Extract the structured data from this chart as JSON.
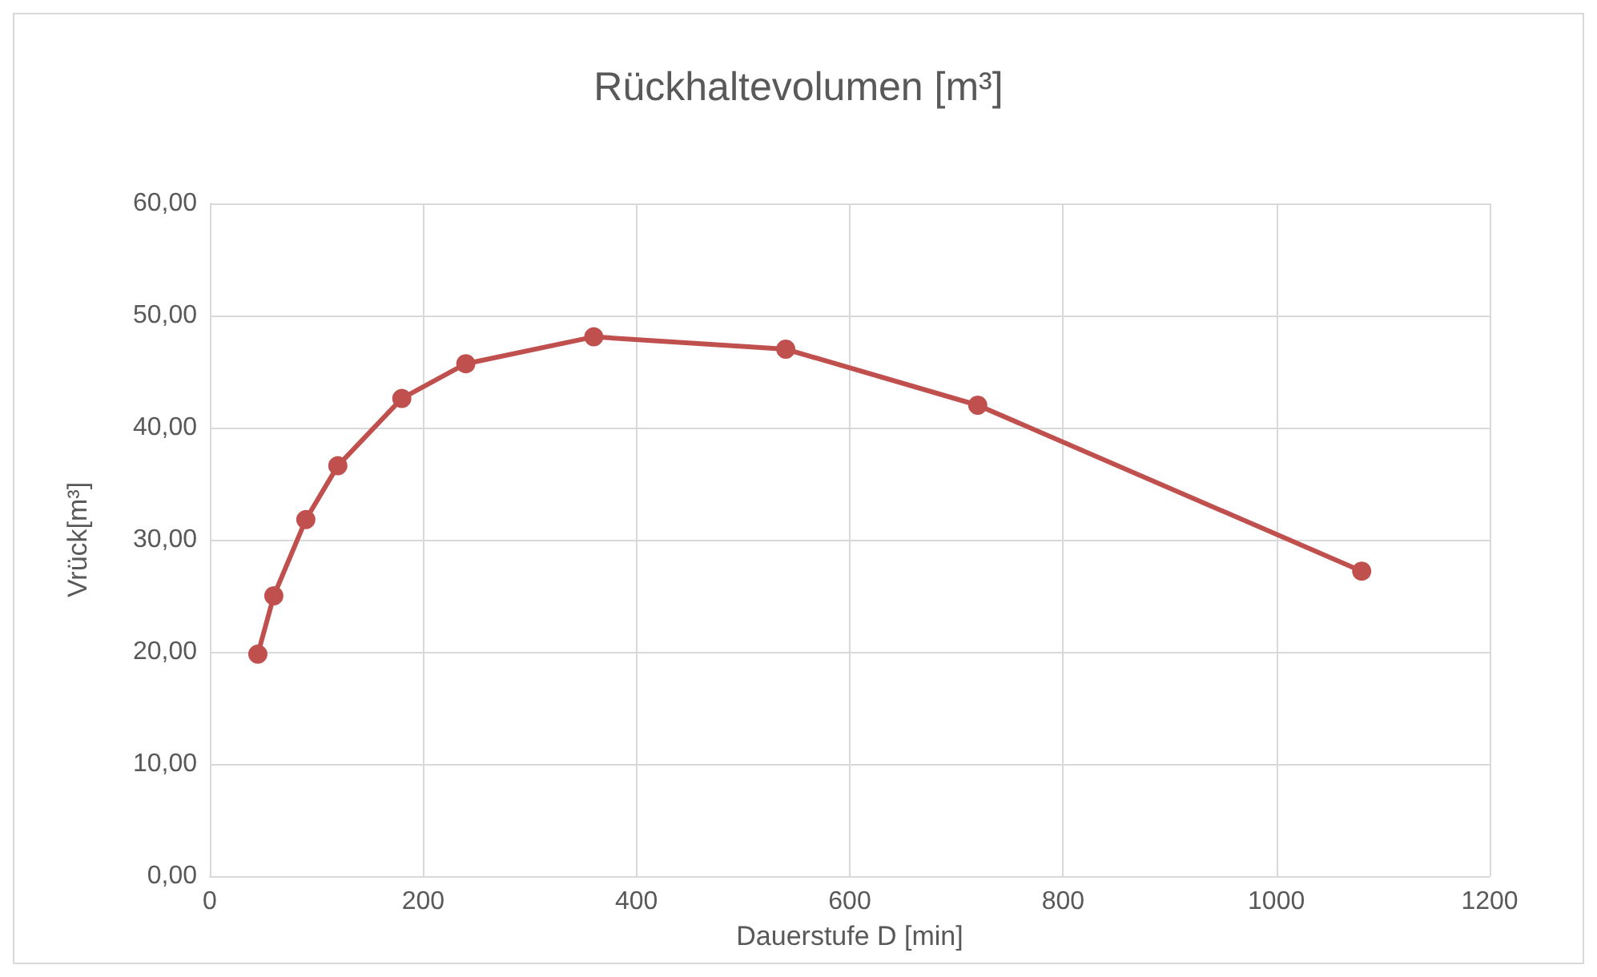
{
  "chart_data": {
    "type": "line",
    "title": "Rückhaltevolumen [m³]",
    "xlabel": "Dauerstufe D [min]",
    "ylabel": "Vrück[m³]",
    "x": [
      45,
      60,
      90,
      120,
      180,
      240,
      360,
      540,
      720,
      1080
    ],
    "series": [
      {
        "color": "#c0504d",
        "values": [
          19.8,
          25.0,
          31.8,
          36.6,
          42.6,
          45.7,
          48.1,
          47.0,
          42.0,
          27.2
        ]
      }
    ],
    "xlim": [
      0,
      1200
    ],
    "xticks": [
      0,
      200,
      400,
      600,
      800,
      1000,
      1200
    ],
    "ylim": [
      0,
      60
    ],
    "yticks": [
      {
        "value": 0,
        "label": "0,00"
      },
      {
        "value": 10,
        "label": "10,00"
      },
      {
        "value": 20,
        "label": "20,00"
      },
      {
        "value": 30,
        "label": "30,00"
      },
      {
        "value": 40,
        "label": "40,00"
      },
      {
        "value": 50,
        "label": "50,00"
      },
      {
        "value": 60,
        "label": "60,00"
      }
    ],
    "grid": true,
    "marker": "circle",
    "line_style": "solid"
  }
}
